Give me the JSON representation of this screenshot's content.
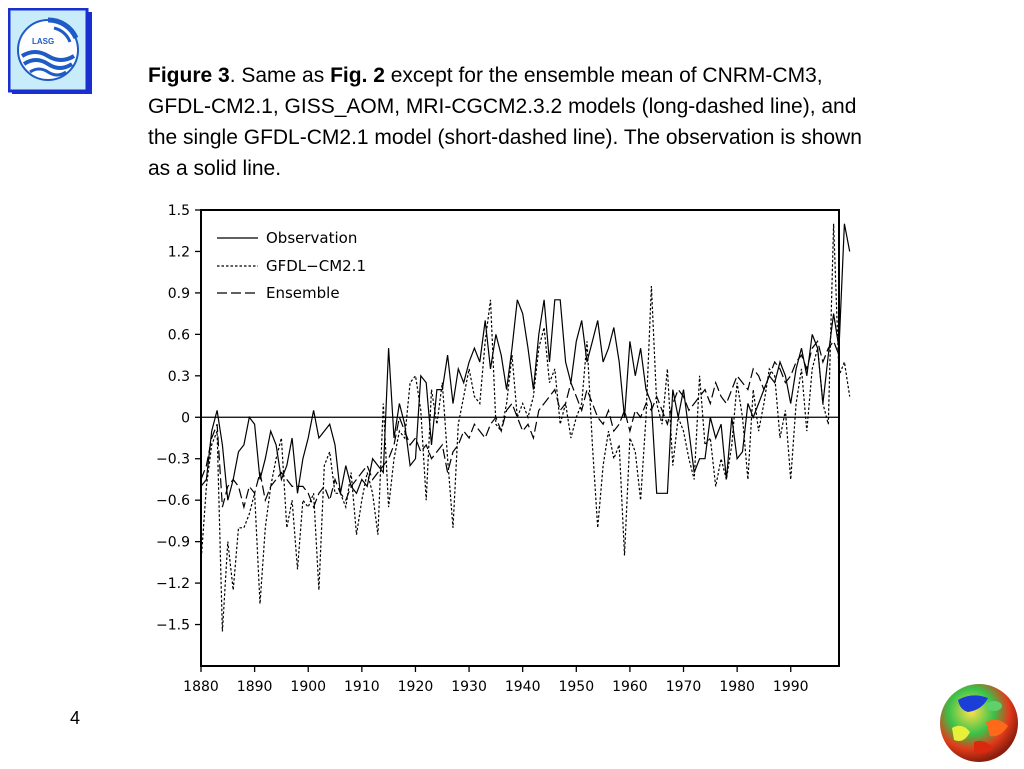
{
  "slide": {
    "page_number": "4",
    "logo_text": "LASG",
    "colors": {
      "logo_blue": "#1e5bc6",
      "logo_bg": "#c8ecfa",
      "logo_border": "#1a2fd0"
    }
  },
  "caption": {
    "fig_label": "Figure 3",
    "part1": ". Same as ",
    "fig_ref": "Fig. 2",
    "part2": " except for the ensemble mean of CNRM-CM3, GFDL-CM2.1, GISS_AOM, MRI-CGCM2.3.2 models (long-dashed line), and the single GFDL-CM2.1 model (short-dashed line). The observation is shown as a solid line."
  },
  "chart_data": {
    "type": "line",
    "title": "",
    "xlabel": "",
    "ylabel": "",
    "xlim": [
      1880,
      1999
    ],
    "ylim": [
      -1.8,
      1.5
    ],
    "x_ticks": [
      1880,
      1890,
      1900,
      1910,
      1920,
      1930,
      1940,
      1950,
      1960,
      1970,
      1980,
      1990
    ],
    "y_ticks": [
      1.5,
      1.2,
      0.9,
      0.6,
      0.3,
      0,
      -0.3,
      -0.6,
      -0.9,
      -1.2,
      -1.5
    ],
    "y_tick_labels": [
      "1.5",
      "1.2",
      "0.9",
      "0.6",
      "0.3",
      "0",
      "−0.3",
      "−0.6",
      "−0.9",
      "−1.2",
      "−1.5"
    ],
    "grid": false,
    "zero_line": true,
    "legend_position": "top-left",
    "legend": [
      "Observation",
      "GFDL−CM2.1",
      "Ensemble"
    ],
    "x_start": 1880,
    "series": [
      {
        "name": "Observation",
        "style": "solid",
        "values": [
          -0.5,
          -0.45,
          -0.1,
          0.05,
          -0.2,
          -0.6,
          -0.45,
          -0.25,
          -0.2,
          0.0,
          -0.05,
          -0.45,
          -0.3,
          -0.1,
          -0.2,
          -0.45,
          -0.35,
          -0.15,
          -0.55,
          -0.3,
          -0.15,
          0.05,
          -0.15,
          -0.1,
          -0.05,
          -0.2,
          -0.55,
          -0.35,
          -0.5,
          -0.55,
          -0.45,
          -0.5,
          -0.3,
          -0.35,
          -0.4,
          0.5,
          -0.15,
          0.1,
          -0.05,
          -0.35,
          -0.3,
          0.3,
          0.25,
          -0.2,
          0.2,
          0.2,
          0.45,
          0.1,
          0.35,
          0.25,
          0.4,
          0.5,
          0.4,
          0.7,
          0.35,
          0.6,
          0.45,
          0.2,
          0.5,
          0.85,
          0.75,
          0.5,
          0.2,
          0.6,
          0.85,
          0.4,
          0.85,
          0.85,
          0.4,
          0.25,
          0.55,
          0.7,
          0.4,
          0.55,
          0.7,
          0.4,
          0.5,
          0.65,
          0.4,
          0.0,
          0.55,
          0.3,
          0.5,
          0.2,
          0.1,
          -0.55,
          -0.55,
          -0.55,
          0.2,
          0.0,
          0.2,
          -0.1,
          -0.4,
          -0.3,
          -0.3,
          0.0,
          -0.15,
          -0.05,
          -0.45,
          0.0,
          -0.3,
          -0.25,
          0.1,
          0.0,
          0.1,
          0.2,
          0.3,
          0.25,
          0.4,
          0.3,
          0.1,
          0.35,
          0.5,
          0.3,
          0.6,
          0.5,
          0.1,
          0.45,
          0.75,
          0.5,
          1.4,
          1.2
        ]
      },
      {
        "name": "GFDL−CM2.1",
        "style": "short-dashed",
        "values": [
          -1.05,
          -0.5,
          -0.2,
          -0.1,
          -1.55,
          -0.9,
          -1.25,
          -0.8,
          -0.8,
          -0.7,
          -0.55,
          -1.35,
          -0.8,
          -0.5,
          -0.3,
          -0.15,
          -0.8,
          -0.6,
          -1.1,
          -0.6,
          -0.65,
          -0.55,
          -1.25,
          -0.35,
          -0.25,
          -0.55,
          -0.55,
          -0.65,
          -0.4,
          -0.85,
          -0.6,
          -0.4,
          -0.55,
          -0.85,
          0.1,
          -0.65,
          -0.3,
          -0.1,
          -0.15,
          0.25,
          0.3,
          0.05,
          -0.6,
          0.2,
          -0.05,
          0.25,
          -0.3,
          -0.8,
          -0.05,
          0.15,
          0.35,
          0.15,
          0.1,
          0.55,
          0.85,
          -0.05,
          -0.1,
          0.1,
          0.45,
          0.0,
          0.1,
          0.0,
          0.15,
          0.5,
          0.65,
          0.25,
          0.35,
          -0.05,
          0.1,
          -0.15,
          0.0,
          0.1,
          0.55,
          -0.2,
          -0.8,
          -0.35,
          -0.1,
          -0.3,
          -0.2,
          -1.0,
          -0.15,
          -0.25,
          -0.6,
          0.0,
          0.95,
          0.1,
          -0.05,
          0.35,
          -0.35,
          0.0,
          -0.1,
          -0.3,
          -0.45,
          0.3,
          -0.2,
          -0.15,
          -0.5,
          -0.3,
          -0.45,
          -0.2,
          0.25,
          0.0,
          -0.45,
          0.2,
          -0.1,
          0.1,
          0.35,
          0.3,
          -0.15,
          0.05,
          -0.45,
          0.1,
          0.35,
          -0.1,
          0.35,
          0.5,
          0.1,
          -0.05,
          1.4,
          0.3,
          0.4,
          0.15
        ]
      },
      {
        "name": "Ensemble",
        "style": "long-dashed",
        "values": [
          -0.45,
          -0.35,
          -0.15,
          -0.05,
          -0.65,
          -0.5,
          -0.45,
          -0.5,
          -0.65,
          -0.5,
          -0.55,
          -0.4,
          -0.6,
          -0.5,
          -0.45,
          -0.4,
          -0.45,
          -0.5,
          -0.5,
          -0.5,
          -0.55,
          -0.65,
          -0.55,
          -0.5,
          -0.6,
          -0.45,
          -0.55,
          -0.6,
          -0.5,
          -0.45,
          -0.4,
          -0.35,
          -0.45,
          -0.4,
          -0.35,
          -0.3,
          -0.2,
          0.0,
          -0.1,
          -0.2,
          -0.15,
          -0.25,
          -0.2,
          -0.3,
          -0.25,
          -0.2,
          -0.4,
          -0.25,
          -0.2,
          -0.1,
          -0.15,
          -0.05,
          -0.1,
          -0.15,
          -0.05,
          0.0,
          -0.1,
          0.05,
          0.1,
          0.0,
          -0.1,
          -0.05,
          -0.15,
          0.05,
          0.1,
          0.15,
          0.2,
          0.05,
          0.1,
          0.25,
          0.15,
          0.05,
          0.2,
          0.1,
          0.0,
          -0.05,
          0.05,
          -0.1,
          -0.05,
          0.05,
          -0.1,
          0.05,
          0.0,
          0.1,
          0.05,
          0.15,
          0.05,
          -0.05,
          0.1,
          0.2,
          0.15,
          0.05,
          0.1,
          0.15,
          0.2,
          0.1,
          0.25,
          0.15,
          0.1,
          0.2,
          0.3,
          0.25,
          0.2,
          0.35,
          0.3,
          0.2,
          0.3,
          0.4,
          0.35,
          0.25,
          0.3,
          0.4,
          0.45,
          0.35,
          0.5,
          0.55,
          0.4,
          0.5,
          0.55,
          0.45
        ]
      }
    ]
  }
}
